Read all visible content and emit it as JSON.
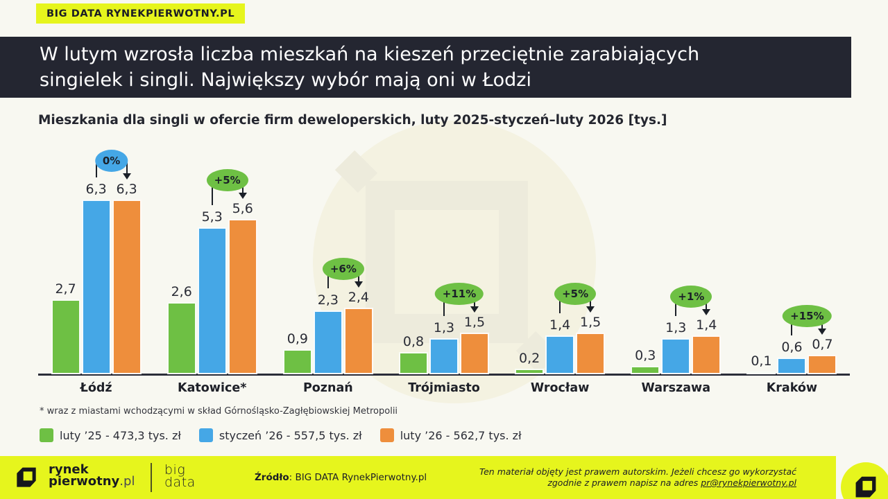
{
  "page": {
    "background": "#F8F8F1",
    "accent_yellow": "#E6F51D",
    "dark": "#242631"
  },
  "brand_badge": {
    "label": "BIG DATA RYNEKPIERWOTNY.PL"
  },
  "header": {
    "lines": [
      "W lutym wzrosła liczba mieszkań na kieszeń przeciętnie zarabiających",
      "singielek i singli. Największy wybór mają oni w Łodzi"
    ]
  },
  "chart_data": {
    "type": "bar",
    "title": "Mieszkania dla singli w ofercie firm deweloperskich, luty 2025-styczeń–luty 2026 [tys.]",
    "unit": "tys.",
    "categories": [
      "Łódź",
      "Katowice*",
      "Poznań",
      "Trójmiasto",
      "Wrocław",
      "Warszawa",
      "Kraków"
    ],
    "series": [
      {
        "name": "luty ’25 - 473,3 tys. zł",
        "color": "#6EC044",
        "values": [
          2.7,
          2.6,
          0.9,
          0.8,
          0.2,
          0.3,
          0.1
        ],
        "labels": [
          "2,7",
          "2,6",
          "0,9",
          "0,8",
          "0,2",
          "0,3",
          "0,1"
        ]
      },
      {
        "name": "styczeń ’26 - 557,5 tys. zł",
        "color": "#45A7E6",
        "values": [
          6.3,
          5.3,
          2.3,
          1.3,
          1.4,
          1.3,
          0.6
        ],
        "labels": [
          "6,3",
          "5,3",
          "2,3",
          "1,3",
          "1,4",
          "1,3",
          "0,6"
        ]
      },
      {
        "name": "luty ’26 - 562,7 tys. zł",
        "color": "#EE8E3C",
        "values": [
          6.3,
          5.6,
          2.4,
          1.5,
          1.5,
          1.4,
          0.7
        ],
        "labels": [
          "6,3",
          "5,6",
          "2,4",
          "1,5",
          "1,5",
          "1,4",
          "0,7"
        ]
      }
    ],
    "change_badges": [
      {
        "label": "0%",
        "color": "#45A7E6"
      },
      {
        "label": "+5%",
        "color": "#6EC044"
      },
      {
        "label": "+6%",
        "color": "#6EC044"
      },
      {
        "label": "+11%",
        "color": "#6EC044"
      },
      {
        "label": "+5%",
        "color": "#6EC044"
      },
      {
        "label": "+1%",
        "color": "#6EC044"
      },
      {
        "label": "+15%",
        "color": "#6EC044"
      }
    ],
    "ylim": [
      0,
      7
    ],
    "grid": false,
    "legend_position": "bottom"
  },
  "footnote": "* wraz z miastami wchodzącymi w skład Górnośląsko-Zagłębiowskiej Metropolii",
  "footer": {
    "logo_top": "rynek",
    "logo_bottom_bold": "pierwotny",
    "logo_bottom_suffix": ".pl",
    "bigdata_top": "big",
    "bigdata_bottom": "data",
    "source_label": "Źródło",
    "source_rest": ": BIG DATA RynekPierwotny.pl",
    "rights_line1": "Ten materiał objęty jest prawem autorskim. Jeżeli chcesz go wykorzystać",
    "rights_line2_prefix": "zgodnie z prawem napisz na adres ",
    "rights_email": "pr@rynekpierwotny.pl"
  }
}
